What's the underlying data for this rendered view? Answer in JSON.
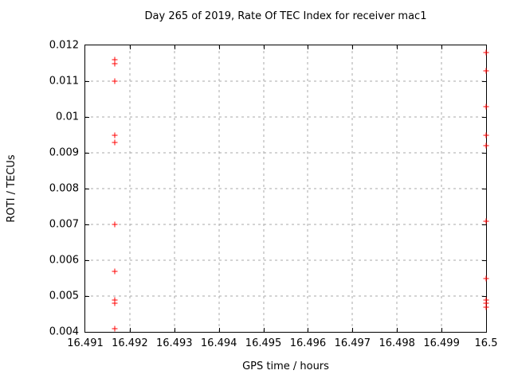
{
  "colors": {
    "marker": "#ff0000",
    "grid": "#a8a8a8",
    "border": "#000000",
    "text": "#000000",
    "background": "#ffffff"
  },
  "chart_data": {
    "type": "scatter",
    "title": "Day 265 of 2019, Rate Of TEC Index for receiver mac1",
    "xlabel": "GPS time / hours",
    "ylabel": "ROTI / TECUs",
    "xlim": [
      16.491,
      16.5
    ],
    "ylim": [
      0.004,
      0.012
    ],
    "xtick_values": [
      16.491,
      16.492,
      16.493,
      16.494,
      16.495,
      16.496,
      16.497,
      16.498,
      16.499,
      16.5
    ],
    "xtick_labels": [
      "16.491",
      "16.492",
      "16.493",
      "16.494",
      "16.495",
      "16.496",
      "16.497",
      "16.498",
      "16.499",
      "16.5"
    ],
    "ytick_values": [
      0.004,
      0.005,
      0.006,
      0.007,
      0.008,
      0.009,
      0.01,
      0.011,
      0.012
    ],
    "ytick_labels": [
      "0.004",
      "0.005",
      "0.006",
      "0.007",
      "0.008",
      "0.009",
      "0.01",
      "0.011",
      "0.012"
    ],
    "grid": true,
    "legend": "none",
    "marker": "plus",
    "series": [
      {
        "name": "ROTI",
        "points": [
          {
            "x": 16.49167,
            "y": 0.0116
          },
          {
            "x": 16.49167,
            "y": 0.0115
          },
          {
            "x": 16.49167,
            "y": 0.011
          },
          {
            "x": 16.49167,
            "y": 0.0095
          },
          {
            "x": 16.49167,
            "y": 0.0093
          },
          {
            "x": 16.49167,
            "y": 0.007
          },
          {
            "x": 16.49167,
            "y": 0.0057
          },
          {
            "x": 16.49167,
            "y": 0.0049
          },
          {
            "x": 16.49167,
            "y": 0.0048
          },
          {
            "x": 16.49167,
            "y": 0.0041
          },
          {
            "x": 16.5,
            "y": 0.0118
          },
          {
            "x": 16.5,
            "y": 0.0113
          },
          {
            "x": 16.5,
            "y": 0.0103
          },
          {
            "x": 16.5,
            "y": 0.0095
          },
          {
            "x": 16.5,
            "y": 0.0092
          },
          {
            "x": 16.5,
            "y": 0.0071
          },
          {
            "x": 16.5,
            "y": 0.0055
          },
          {
            "x": 16.5,
            "y": 0.0049
          },
          {
            "x": 16.5,
            "y": 0.0048
          },
          {
            "x": 16.5,
            "y": 0.0047
          }
        ]
      }
    ]
  }
}
